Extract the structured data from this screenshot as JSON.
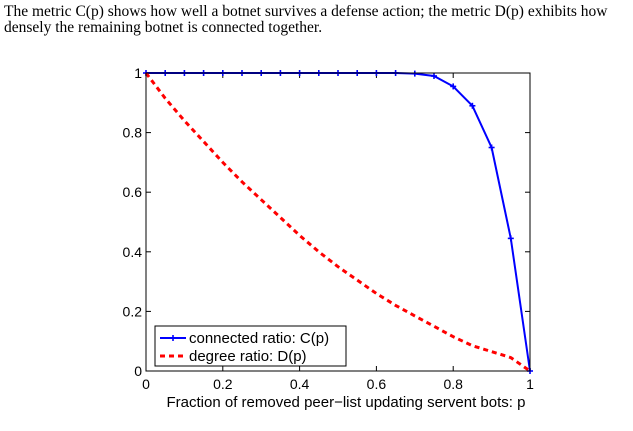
{
  "caption": {
    "line1": "The metric C(p) shows how well a botnet survives a defense action; the metric D(p) exhibits how",
    "line2": "densely the remaining botnet is connected together."
  },
  "chart_data": {
    "type": "line",
    "title": "",
    "xlabel": "Fraction of removed peer−list updating servent bots: p",
    "ylabel": "",
    "xlim": [
      0,
      1
    ],
    "ylim": [
      0,
      1
    ],
    "x_ticks": [
      {
        "value": 0,
        "label": "0"
      },
      {
        "value": 0.2,
        "label": "0.2"
      },
      {
        "value": 0.4,
        "label": "0.4"
      },
      {
        "value": 0.6,
        "label": "0.6"
      },
      {
        "value": 0.8,
        "label": "0.8"
      },
      {
        "value": 1,
        "label": "1"
      }
    ],
    "y_ticks": [
      {
        "value": 0,
        "label": "0"
      },
      {
        "value": 0.2,
        "label": "0.2"
      },
      {
        "value": 0.4,
        "label": "0.4"
      },
      {
        "value": 0.6,
        "label": "0.6"
      },
      {
        "value": 0.8,
        "label": "0.8"
      },
      {
        "value": 1,
        "label": "1"
      }
    ],
    "grid": false,
    "legend_position": "bottom-left",
    "series": [
      {
        "name": "connected ratio: C(p)",
        "color": "#0000ff",
        "style": "solid",
        "marker": "plus",
        "x": [
          0,
          0.05,
          0.1,
          0.15,
          0.2,
          0.25,
          0.3,
          0.35,
          0.4,
          0.45,
          0.5,
          0.55,
          0.6,
          0.65,
          0.7,
          0.75,
          0.8,
          0.85,
          0.9,
          0.95,
          1
        ],
        "y": [
          1,
          1,
          1,
          1,
          1,
          1,
          1,
          1,
          1,
          1,
          1,
          1,
          1,
          1,
          0.998,
          0.99,
          0.955,
          0.89,
          0.75,
          0.445,
          0
        ]
      },
      {
        "name": "degree ratio: D(p)",
        "color": "#ff0000",
        "style": "dashed",
        "marker": "none",
        "x": [
          0,
          0.05,
          0.1,
          0.15,
          0.2,
          0.25,
          0.3,
          0.35,
          0.4,
          0.45,
          0.5,
          0.55,
          0.6,
          0.65,
          0.7,
          0.75,
          0.8,
          0.85,
          0.9,
          0.95,
          1
        ],
        "y": [
          1,
          0.915,
          0.84,
          0.77,
          0.7,
          0.635,
          0.575,
          0.515,
          0.455,
          0.4,
          0.35,
          0.305,
          0.26,
          0.22,
          0.185,
          0.15,
          0.115,
          0.085,
          0.065,
          0.045,
          0
        ]
      }
    ]
  }
}
